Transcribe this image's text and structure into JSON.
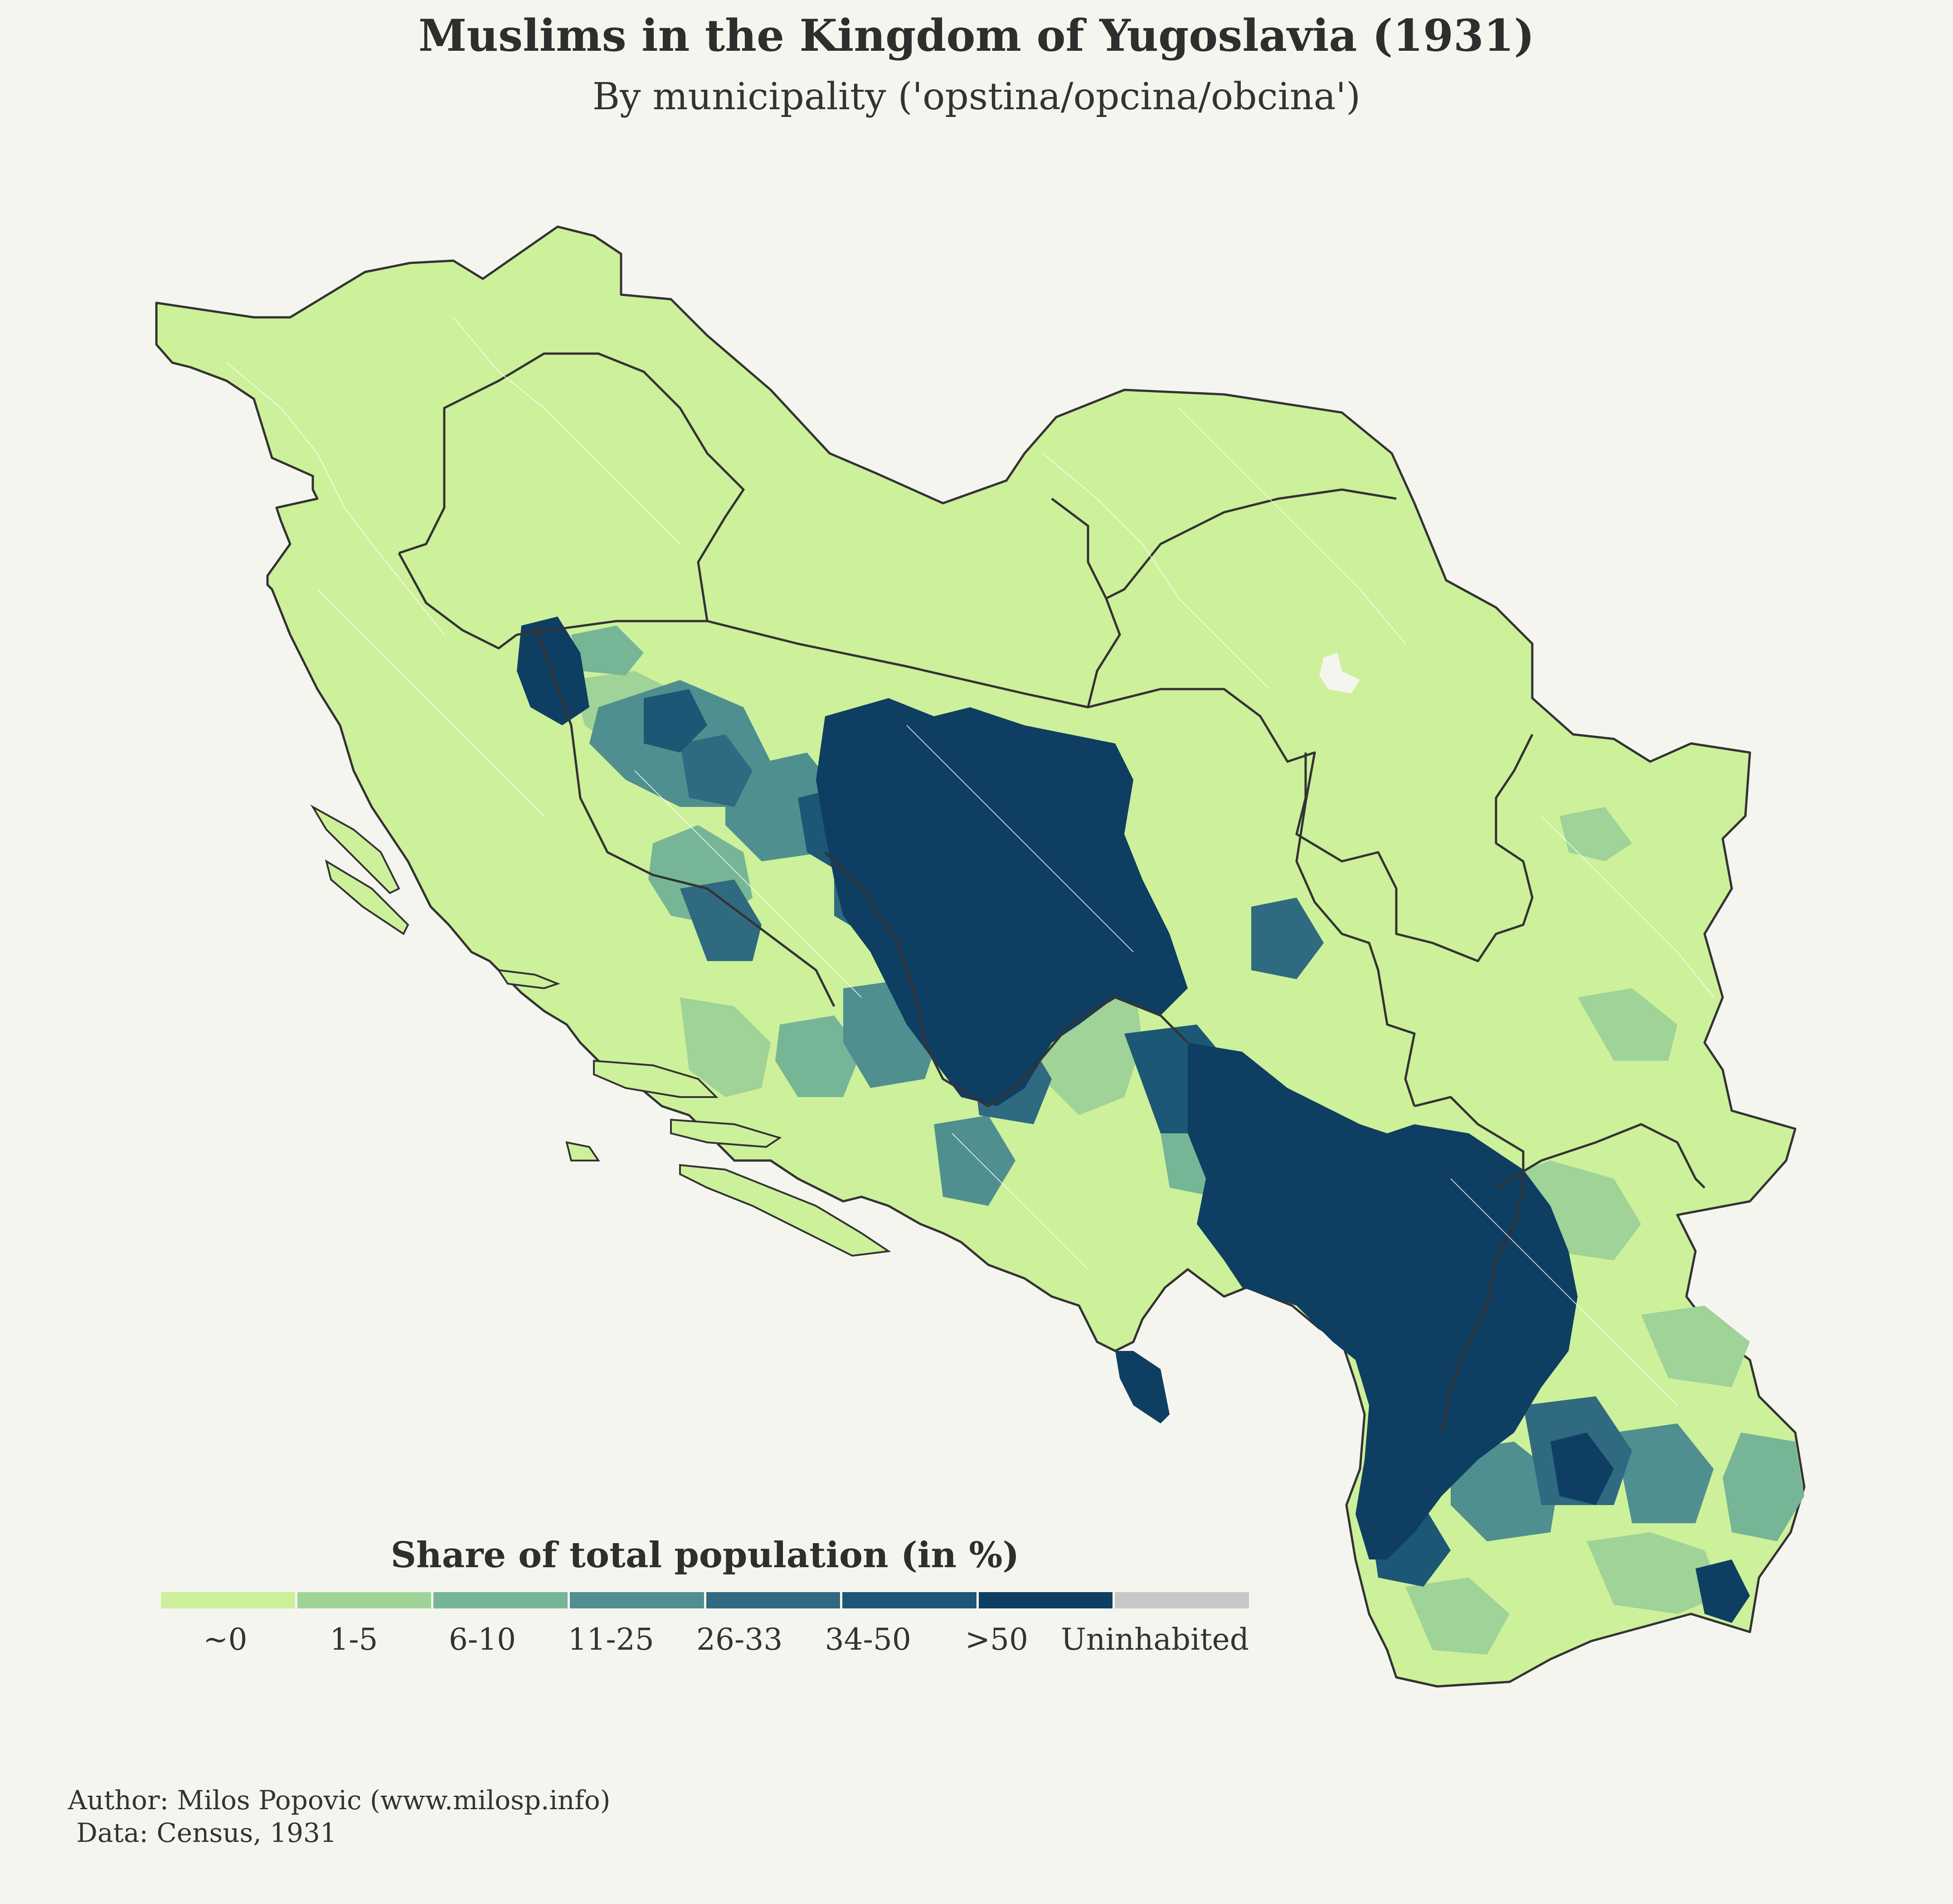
{
  "title": "Muslims in the Kingdom of Yugoslavia (1931)",
  "subtitle": "By municipality ('opstina/opcina/obcina')",
  "legend": {
    "title": "Share of total population (in %)",
    "classes": [
      {
        "label": "~0",
        "color": "#cdf09a"
      },
      {
        "label": "1-5",
        "color": "#9fd397"
      },
      {
        "label": "6-10",
        "color": "#76b696"
      },
      {
        "label": "11-25",
        "color": "#4f8f8f"
      },
      {
        "label": "26-33",
        "color": "#2f6a80"
      },
      {
        "label": "34-50",
        "color": "#1d5776"
      },
      {
        "label": ">50",
        "color": "#0f3e63"
      },
      {
        "label": "Uninhabited",
        "color": "#c8c8c8"
      }
    ]
  },
  "caption": {
    "author": "Author: Milos Popovic (www.milosp.info)",
    "data": " Data: Census, 1931"
  },
  "colors": {
    "background": "#f5f5f0",
    "border": "#333333",
    "municipality_lines": "#ffffff"
  }
}
